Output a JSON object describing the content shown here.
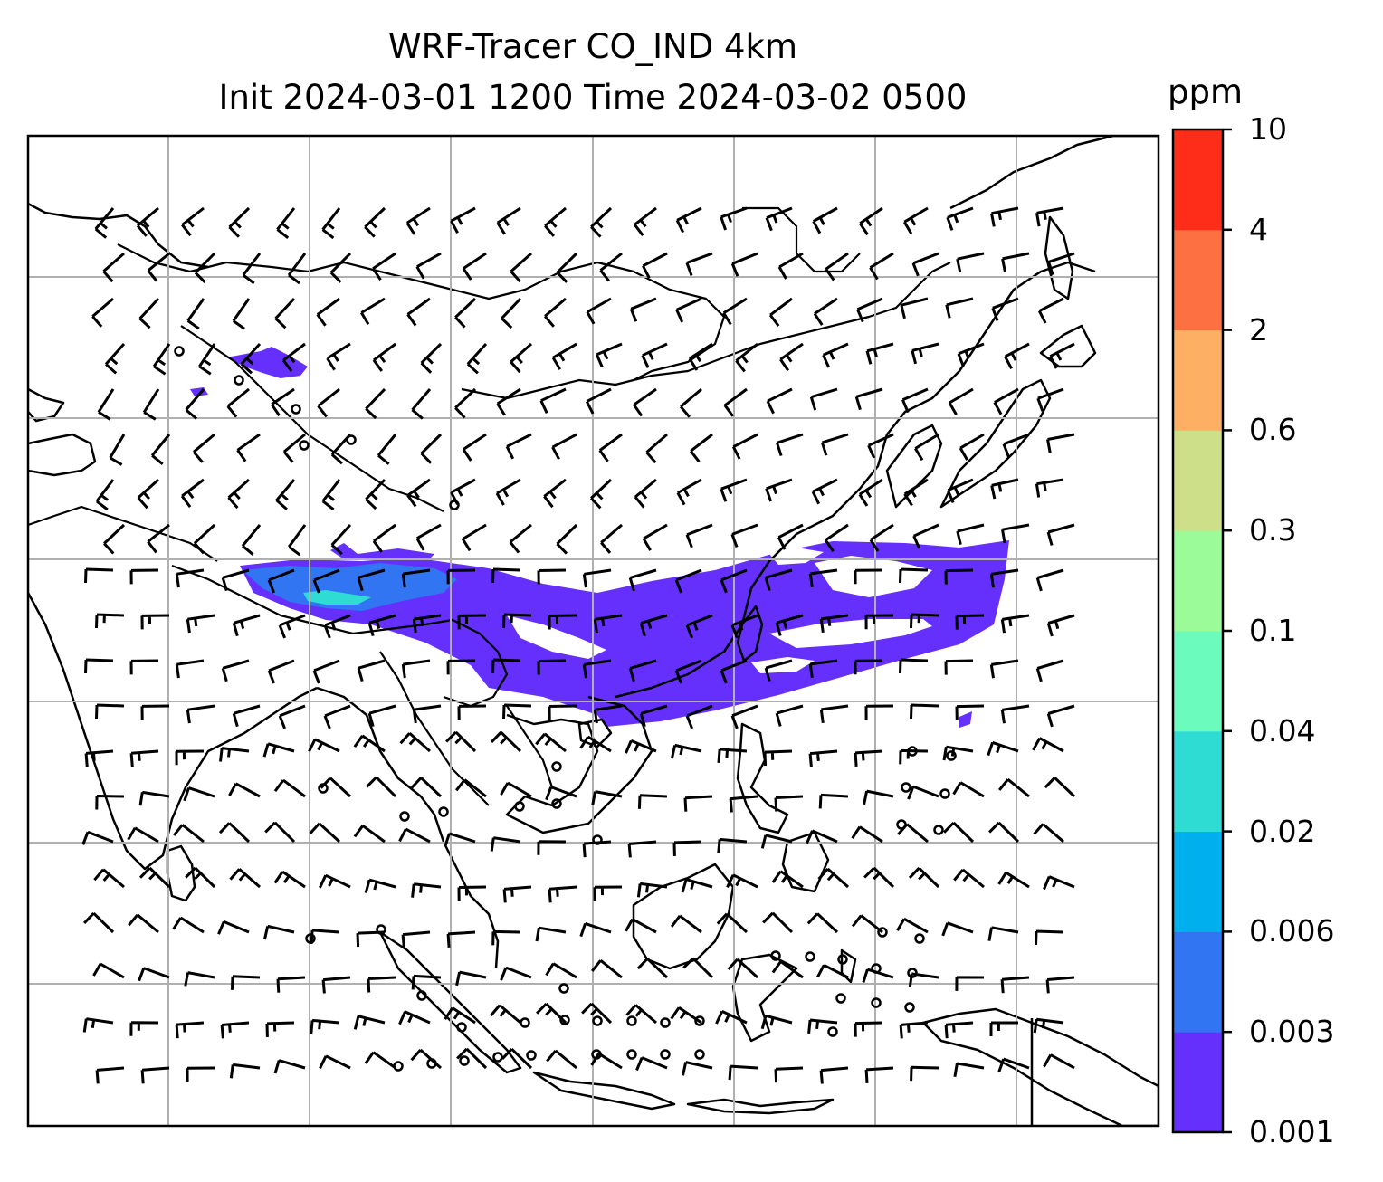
{
  "title": {
    "line1": "WRF-Tracer CO_IND 4km",
    "line2": "Init 2024-03-01 1200 Time 2024-03-02 0500"
  },
  "colorbar": {
    "unit": "ppm",
    "tick_labels": [
      "0.001",
      "0.003",
      "0.006",
      "0.02",
      "0.04",
      "0.1",
      "0.3",
      "0.6",
      "2",
      "4",
      "10"
    ],
    "colors": [
      "#6530fc",
      "#3175f3",
      "#00b0ee",
      "#2fdcd4",
      "#6afbbd",
      "#9bfb99",
      "#cedf8a",
      "#fdb064",
      "#fd7041",
      "#fe2d1a"
    ]
  },
  "map": {
    "variable": "CO_IND",
    "units": "ppm",
    "gridlines": true,
    "wind_barbs": true,
    "plume_color": "#6530fc",
    "core_color": "#3175f3",
    "hotspot_color": "#2fdcd4"
  }
}
